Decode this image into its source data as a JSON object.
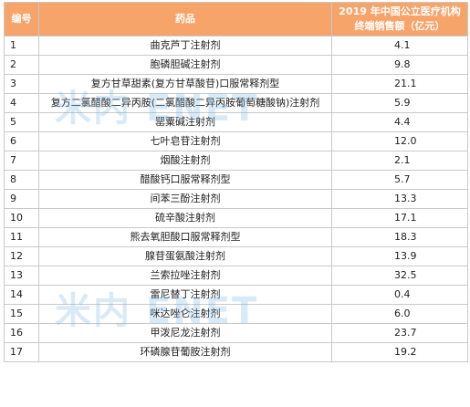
{
  "table": {
    "headers": {
      "index": "编号",
      "drug": "药品",
      "sales_line1": "2019 年中国公立医疗机构",
      "sales_line2": "终端销售额（亿元）"
    },
    "rows": [
      {
        "no": "1",
        "name": "曲克芦丁注射剂",
        "value": "4.1"
      },
      {
        "no": "2",
        "name": "胞磷胆碱注射剂",
        "value": "9.8"
      },
      {
        "no": "3",
        "name": "复方甘草甜素(复方甘草酸苷)口服常释剂型",
        "value": "21.1"
      },
      {
        "no": "4",
        "name": "复方二氯醋酸二异丙胺(二氯醋酸二异丙胺葡萄糖酸钠)注射剂",
        "value": "5.9"
      },
      {
        "no": "5",
        "name": "罂粟碱注射剂",
        "value": "4.4"
      },
      {
        "no": "6",
        "name": "七叶皂苷注射剂",
        "value": "12.0"
      },
      {
        "no": "7",
        "name": "烟酸注射剂",
        "value": "2.1"
      },
      {
        "no": "8",
        "name": "醋酸钙口服常释剂型",
        "value": "5.7"
      },
      {
        "no": "9",
        "name": "间苯三酚注射剂",
        "value": "13.3"
      },
      {
        "no": "10",
        "name": "硫辛酸注射剂",
        "value": "17.1"
      },
      {
        "no": "11",
        "name": "熊去氧胆酸口服常释剂型",
        "value": "18.3"
      },
      {
        "no": "12",
        "name": "腺苷蛋氨酸注射剂",
        "value": "13.9"
      },
      {
        "no": "13",
        "name": "兰索拉唑注射剂",
        "value": "32.5"
      },
      {
        "no": "14",
        "name": "雷尼替丁注射剂",
        "value": "0.4"
      },
      {
        "no": "15",
        "name": "咪达唑仑注射剂",
        "value": "6.0"
      },
      {
        "no": "16",
        "name": "甲泼尼龙注射剂",
        "value": "23.7"
      },
      {
        "no": "17",
        "name": "环磷腺苷葡胺注射剂",
        "value": "19.2"
      }
    ]
  },
  "watermark": {
    "text_top": "米内 ENET",
    "text_bottom": "米内 ENET"
  },
  "colors": {
    "header_bg": "#f7a46b",
    "header_text": "#ffffff",
    "border": "#c9c9c9"
  }
}
